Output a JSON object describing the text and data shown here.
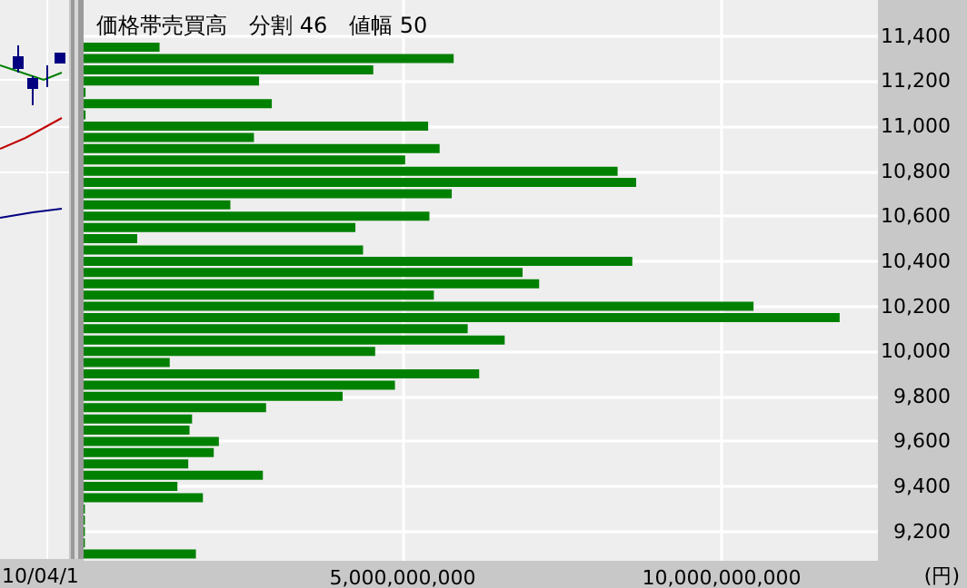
{
  "chart_data": {
    "type": "bar",
    "orientation": "horizontal",
    "title": "価格帯売買高　分割 46　値幅 50",
    "xlabel": "(円)",
    "annotations": [
      "10/04/1"
    ],
    "x": [
      11350,
      11300,
      11250,
      11200,
      11150,
      11100,
      11050,
      11000,
      10950,
      10900,
      10850,
      10800,
      10750,
      10700,
      10650,
      10600,
      10550,
      10500,
      10450,
      10400,
      10350,
      10300,
      10250,
      10200,
      10150,
      10100,
      10050,
      10000,
      9950,
      9900,
      9850,
      9800,
      9750,
      9700,
      9650,
      9600,
      9550,
      9500,
      9450,
      9400,
      9350,
      9300,
      9250,
      9200,
      9150,
      9100
    ],
    "values": [
      1190000000,
      5800000000,
      4540000000,
      2750000000,
      30000000,
      2950000000,
      30000000,
      5400000000,
      2670000000,
      5580000000,
      5040000000,
      8370000000,
      8660000000,
      5770000000,
      2300000000,
      5420000000,
      4260000000,
      840000000,
      4380000000,
      8600000000,
      6880000000,
      7140000000,
      5490000000,
      10500000000,
      11850000000,
      6020000000,
      6600000000,
      4570000000,
      1350000000,
      6200000000,
      4880000000,
      4060000000,
      2860000000,
      1700000000,
      1660000000,
      2120000000,
      2040000000,
      1640000000,
      2810000000,
      1470000000,
      1870000000,
      20000000,
      20000000,
      20000000,
      20000000,
      1760000000
    ],
    "color": "#008000",
    "xlim": [
      0,
      12450000000
    ],
    "xticks": [
      {
        "value": 5000000000,
        "label": "5,000,000,000"
      },
      {
        "value": 10000000000,
        "label": "10,000,000,000"
      }
    ],
    "ylim": [
      9070,
      11560
    ],
    "yticks": [
      {
        "value": 9200,
        "label": "9,200"
      },
      {
        "value": 9400,
        "label": "9,400"
      },
      {
        "value": 9600,
        "label": "9,600"
      },
      {
        "value": 9800,
        "label": "9,800"
      },
      {
        "value": 10000,
        "label": "10,000"
      },
      {
        "value": 10200,
        "label": "10,200"
      },
      {
        "value": 10400,
        "label": "10,400"
      },
      {
        "value": 10600,
        "label": "10,600"
      },
      {
        "value": 10800,
        "label": "10,800"
      },
      {
        "value": 11000,
        "label": "11,000"
      },
      {
        "value": 11200,
        "label": "11,200"
      },
      {
        "value": 11400,
        "label": "11,400"
      }
    ],
    "grid": true
  }
}
